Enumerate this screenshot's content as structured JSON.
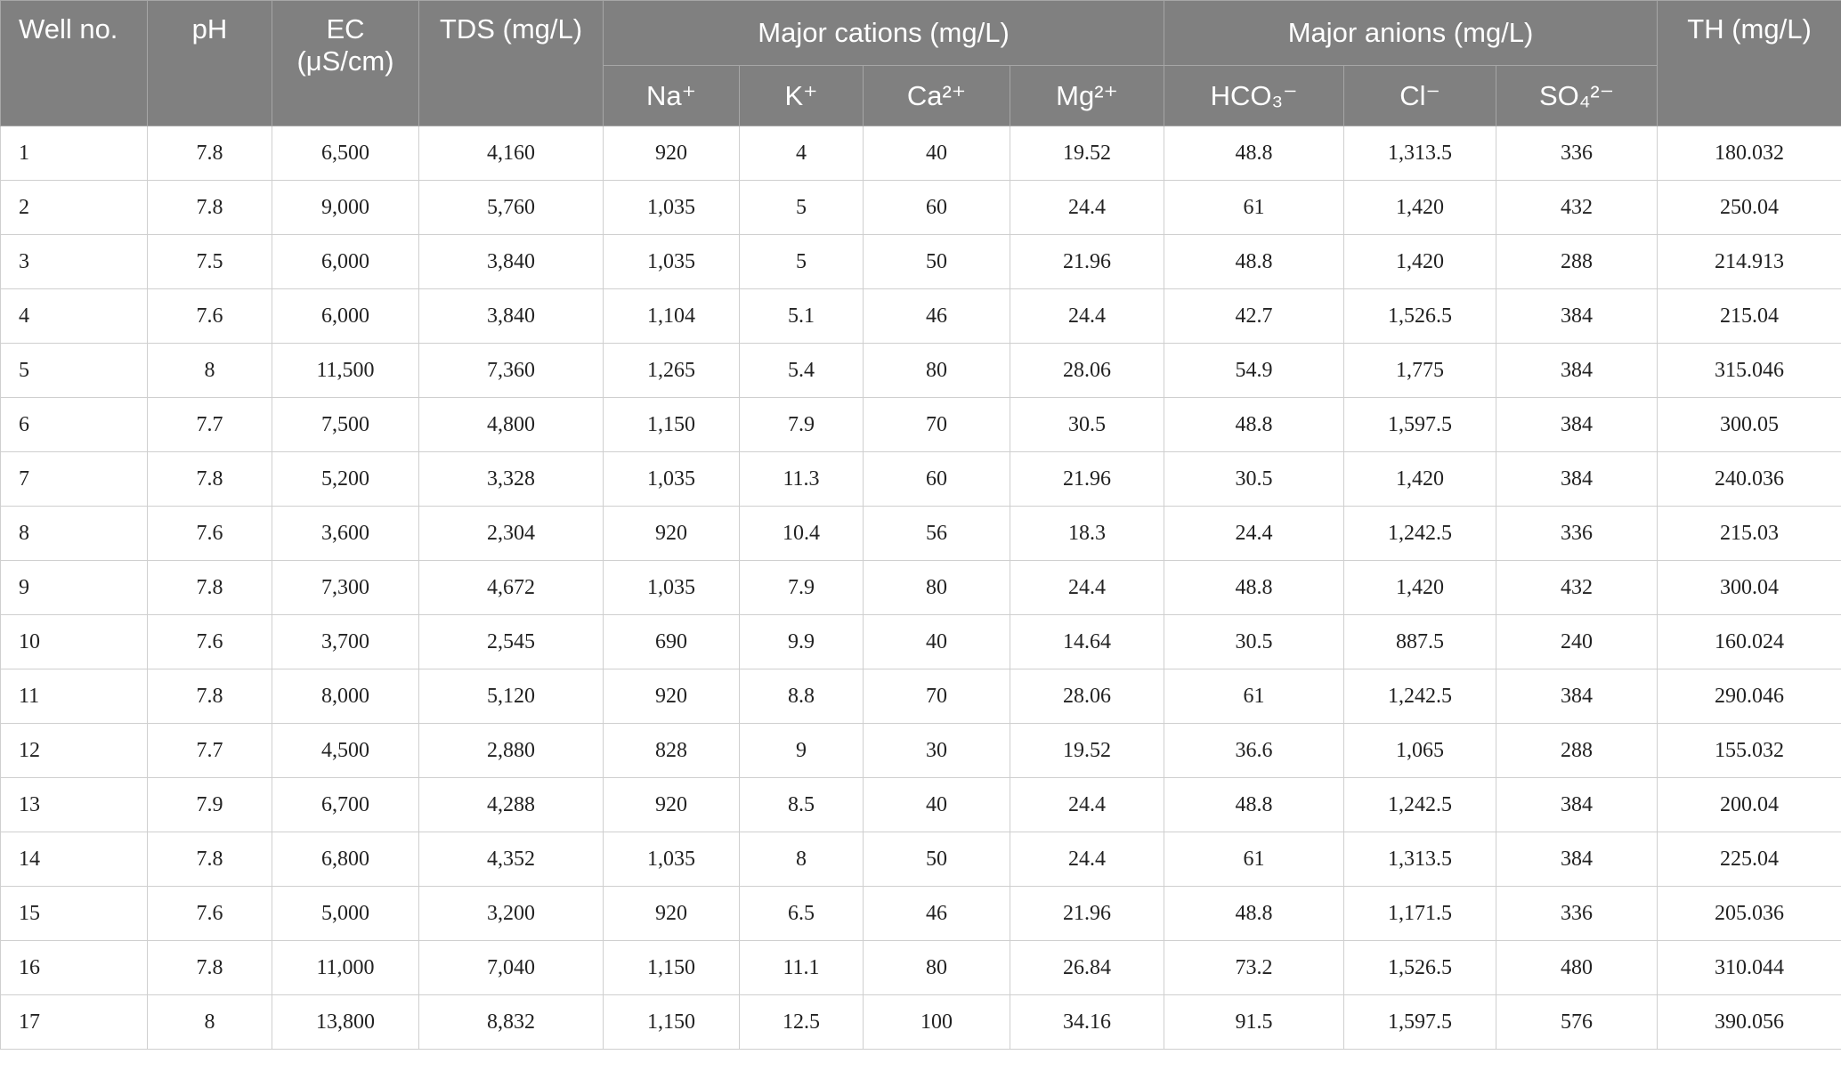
{
  "table": {
    "header": [
      [
        "Well no.",
        "pH",
        "EC (μS/cm)",
        "TDS (mg/L)",
        "Major cations (mg/L)",
        "Major anions (mg/L)",
        "TH (mg/L)"
      ],
      [
        "Na⁺",
        "K⁺",
        "Ca²⁺",
        "Mg²⁺",
        "HCO₃⁻",
        "Cl⁻",
        "SO₄²⁻"
      ]
    ],
    "rows": [
      [
        "1",
        "7.8",
        "6,500",
        "4,160",
        "920",
        "4",
        "40",
        "19.52",
        "48.8",
        "1,313.5",
        "336",
        "180.032"
      ],
      [
        "2",
        "7.8",
        "9,000",
        "5,760",
        "1,035",
        "5",
        "60",
        "24.4",
        "61",
        "1,420",
        "432",
        "250.04"
      ],
      [
        "3",
        "7.5",
        "6,000",
        "3,840",
        "1,035",
        "5",
        "50",
        "21.96",
        "48.8",
        "1,420",
        "288",
        "214.913"
      ],
      [
        "4",
        "7.6",
        "6,000",
        "3,840",
        "1,104",
        "5.1",
        "46",
        "24.4",
        "42.7",
        "1,526.5",
        "384",
        "215.04"
      ],
      [
        "5",
        "8",
        "11,500",
        "7,360",
        "1,265",
        "5.4",
        "80",
        "28.06",
        "54.9",
        "1,775",
        "384",
        "315.046"
      ],
      [
        "6",
        "7.7",
        "7,500",
        "4,800",
        "1,150",
        "7.9",
        "70",
        "30.5",
        "48.8",
        "1,597.5",
        "384",
        "300.05"
      ],
      [
        "7",
        "7.8",
        "5,200",
        "3,328",
        "1,035",
        "11.3",
        "60",
        "21.96",
        "30.5",
        "1,420",
        "384",
        "240.036"
      ],
      [
        "8",
        "7.6",
        "3,600",
        "2,304",
        "920",
        "10.4",
        "56",
        "18.3",
        "24.4",
        "1,242.5",
        "336",
        "215.03"
      ],
      [
        "9",
        "7.8",
        "7,300",
        "4,672",
        "1,035",
        "7.9",
        "80",
        "24.4",
        "48.8",
        "1,420",
        "432",
        "300.04"
      ],
      [
        "10",
        "7.6",
        "3,700",
        "2,545",
        "690",
        "9.9",
        "40",
        "14.64",
        "30.5",
        "887.5",
        "240",
        "160.024"
      ],
      [
        "11",
        "7.8",
        "8,000",
        "5,120",
        "920",
        "8.8",
        "70",
        "28.06",
        "61",
        "1,242.5",
        "384",
        "290.046"
      ],
      [
        "12",
        "7.7",
        "4,500",
        "2,880",
        "828",
        "9",
        "30",
        "19.52",
        "36.6",
        "1,065",
        "288",
        "155.032"
      ],
      [
        "13",
        "7.9",
        "6,700",
        "4,288",
        "920",
        "8.5",
        "40",
        "24.4",
        "48.8",
        "1,242.5",
        "384",
        "200.04"
      ],
      [
        "14",
        "7.8",
        "6,800",
        "4,352",
        "1,035",
        "8",
        "50",
        "24.4",
        "61",
        "1,313.5",
        "384",
        "225.04"
      ],
      [
        "15",
        "7.6",
        "5,000",
        "3,200",
        "920",
        "6.5",
        "46",
        "21.96",
        "48.8",
        "1,171.5",
        "336",
        "205.036"
      ],
      [
        "16",
        "7.8",
        "11,000",
        "7,040",
        "1,150",
        "11.1",
        "80",
        "26.84",
        "73.2",
        "1,526.5",
        "480",
        "310.044"
      ],
      [
        "17",
        "8",
        "13,800",
        "8,832",
        "1,150",
        "12.5",
        "100",
        "34.16",
        "91.5",
        "1,597.5",
        "576",
        "390.056"
      ]
    ]
  }
}
